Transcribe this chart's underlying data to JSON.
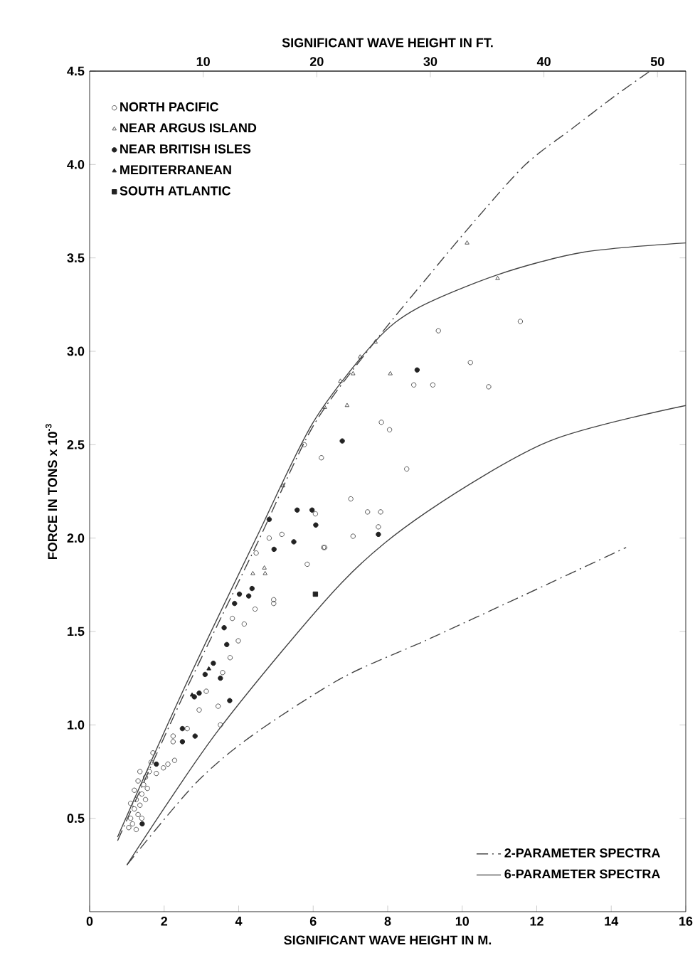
{
  "chart_data": {
    "type": "scatter",
    "xlabel": "SIGNIFICANT WAVE HEIGHT IN M.",
    "ylabel": "FORCE IN TONS x 10$^{-3}$",
    "x2label": "SIGNIFICANT WAVE HEIGHT IN FT.",
    "xlim": [
      0,
      16
    ],
    "xticks": [
      0,
      2,
      4,
      6,
      8,
      10,
      12,
      14,
      16
    ],
    "ylim": [
      0,
      4.5
    ],
    "yticks": [
      0.5,
      {
        "value": 1,
        "label": "1.0"
      },
      1.5,
      {
        "value": 2,
        "label": "2.0"
      },
      2.5,
      {
        "value": 3,
        "label": "3.0"
      },
      3.5,
      {
        "value": 4,
        "label": "4.0"
      },
      4.5
    ],
    "x2lim": [
      0,
      52.49
    ],
    "x2ticks": [
      10,
      20,
      30,
      40,
      50
    ],
    "legend": "top left",
    "series": [
      {
        "name": "NORTH PACIFIC",
        "type": "scatter",
        "marker": "circle",
        "color": "#555555",
        "x": [
          1.05,
          1.1,
          1.15,
          1.2,
          1.1,
          1.25,
          1.3,
          1.35,
          1.2,
          1.4,
          1.45,
          1.3,
          1.5,
          1.55,
          1.6,
          1.4,
          1.25,
          1.5,
          1.65,
          1.7,
          1.35,
          1.79,
          1.98,
          2.1,
          2.28,
          2.24,
          2.24,
          2.62,
          2.94,
          3.13,
          3.45,
          3.51,
          3.57,
          3.77,
          3.99,
          4.15,
          3.83,
          4.44,
          4.94,
          4.94,
          4.47,
          5.84,
          6.28,
          5.76,
          6.22,
          7.01,
          7.46,
          7.81,
          7.75,
          7.07,
          6.31,
          5.16,
          4.82,
          6.06,
          7.83,
          8.05,
          8.51,
          8.7,
          9.21,
          9.36,
          10.22,
          10.71,
          11.56
        ],
        "values": [
          0.45,
          0.5,
          0.47,
          0.55,
          0.58,
          0.6,
          0.52,
          0.57,
          0.65,
          0.63,
          0.68,
          0.7,
          0.72,
          0.66,
          0.75,
          0.5,
          0.44,
          0.6,
          0.8,
          0.85,
          0.75,
          0.74,
          0.77,
          0.79,
          0.81,
          0.94,
          0.91,
          0.98,
          1.08,
          1.18,
          1.1,
          1.0,
          1.28,
          1.36,
          1.45,
          1.54,
          1.57,
          1.62,
          1.67,
          1.65,
          1.92,
          1.86,
          1.95,
          2.5,
          2.43,
          2.21,
          2.14,
          2.14,
          2.06,
          2.01,
          1.95,
          2.02,
          2.0,
          2.13,
          2.62,
          2.58,
          2.37,
          2.82,
          2.82,
          3.11,
          2.94,
          2.81,
          3.16
        ]
      },
      {
        "name": "NEAR ARGUS ISLAND",
        "type": "scatter",
        "marker": "triangle",
        "color": "#555555",
        "x": [
          4.38,
          4.71,
          4.69,
          5.19,
          6.31,
          6.91,
          6.73,
          7.07,
          7.26,
          7.67,
          8.07,
          10.13,
          10.95
        ],
        "values": [
          1.81,
          1.81,
          1.84,
          2.28,
          2.7,
          2.71,
          2.84,
          2.88,
          2.97,
          3.05,
          2.88,
          3.58,
          3.39
        ]
      },
      {
        "name": "NEAR BRITISH ISLES",
        "type": "scatter",
        "marker": "circle",
        "color": "#222222",
        "x": [
          1.41,
          1.79,
          2.49,
          2.49,
          2.83,
          2.81,
          2.94,
          3.1,
          3.32,
          3.51,
          3.76,
          3.61,
          3.68,
          3.89,
          4.02,
          4.27,
          4.36,
          4.95,
          5.48,
          4.82,
          5.57,
          5.97,
          6.07,
          6.78,
          7.75,
          8.79
        ],
        "values": [
          0.47,
          0.79,
          0.91,
          0.98,
          0.94,
          1.15,
          1.17,
          1.27,
          1.33,
          1.25,
          1.13,
          1.52,
          1.43,
          1.65,
          1.7,
          1.69,
          1.73,
          1.94,
          1.98,
          2.1,
          2.15,
          2.15,
          2.07,
          2.52,
          2.02,
          2.9
        ]
      },
      {
        "name": "MEDITERRANEAN",
        "type": "scatter",
        "marker": "triangle",
        "color": "#222222",
        "x": [
          2.75,
          3.2
        ],
        "values": [
          1.16,
          1.3
        ]
      },
      {
        "name": "SOUTH ATLANTIC",
        "type": "scatter",
        "marker": "square",
        "color": "#222222",
        "x": [
          6.06
        ],
        "values": [
          1.7
        ]
      },
      {
        "name": "2-PARAMETER SPECTRA",
        "type": "line",
        "line_style": "dashdot",
        "color": "#444444",
        "x": [
          0.75,
          2.5,
          4.47,
          6.0,
          7.65,
          9.0,
          10.3,
          11.7,
          13.0,
          14.12,
          15.04
        ],
        "values": [
          0.38,
          1.15,
          1.96,
          2.6,
          3.05,
          3.38,
          3.69,
          4.0,
          4.2,
          4.37,
          4.5
        ]
      },
      {
        "name": "6-PARAMETER SPECTRA",
        "type": "line",
        "line_style": "solid",
        "color": "#444444",
        "x": [
          0.75,
          2.5,
          4.47,
          6.0,
          7.65,
          8.79,
          10.95,
          13.24,
          16.0
        ],
        "values": [
          0.4,
          1.18,
          2.0,
          2.62,
          3.05,
          3.23,
          3.41,
          3.53,
          3.58
        ]
      },
      {
        "type": "line",
        "line_style": "dashdot",
        "color": "#444444",
        "x": [
          1.0,
          2.81,
          4.34,
          6.76,
          9.0,
          11.5,
          14.4
        ],
        "values": [
          0.25,
          0.68,
          0.94,
          1.25,
          1.45,
          1.68,
          1.95
        ]
      },
      {
        "type": "line",
        "line_style": "solid",
        "color": "#444444",
        "x": [
          1.0,
          3.45,
          6.76,
          9.05,
          12.35,
          16.0
        ],
        "values": [
          0.25,
          0.97,
          1.76,
          2.14,
          2.52,
          2.71
        ]
      }
    ]
  }
}
